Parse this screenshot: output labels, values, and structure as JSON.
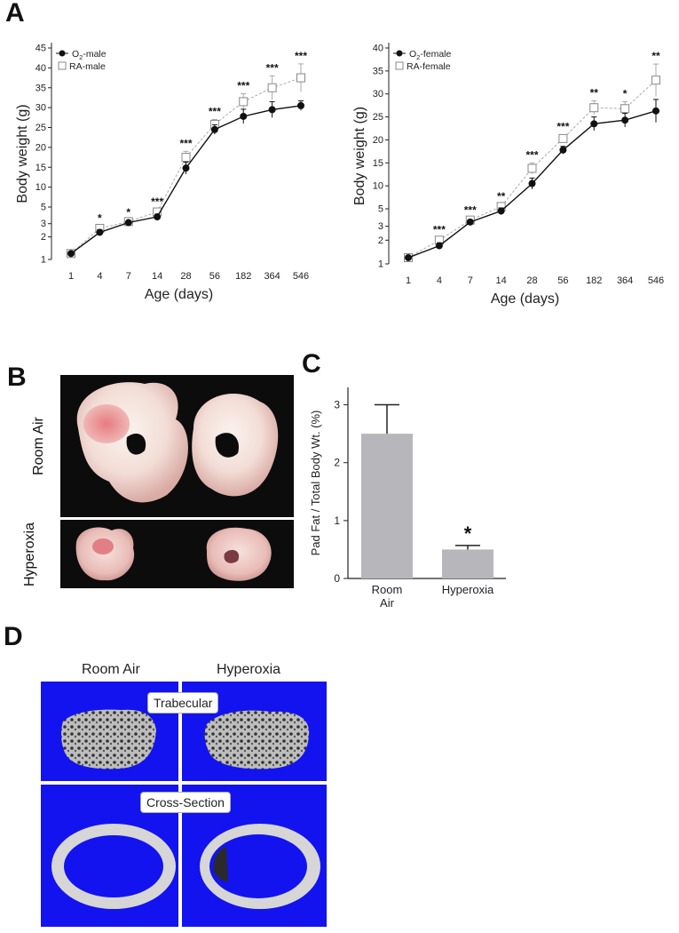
{
  "panels": {
    "a": "A",
    "b": "B",
    "c": "C",
    "d": "D"
  },
  "colors": {
    "bar": "#b6b6bb",
    "o2_series": "#111111",
    "ra_series": "#999999",
    "bone_background": "#1313f0",
    "bone": "#d6d6d6"
  },
  "photo_labels": {
    "room_air": "Room Air",
    "hyperoxia": "Hyperoxia"
  },
  "bone_images": {
    "col_room_air": "Room Air",
    "col_hyperoxia": "Hyperoxia",
    "trabecular_label": "Trabecular",
    "cross_section_label": "Cross-Section"
  },
  "chart_data": [
    {
      "type": "line",
      "panel": "A",
      "xlabel": "Age (days)",
      "ylabel": "Body weight (g)",
      "categories": [
        "1",
        "4",
        "7",
        "14",
        "28",
        "56",
        "182",
        "364",
        "546"
      ],
      "y_ticks": [
        "1",
        "2",
        "3",
        "5",
        "10",
        "15",
        "20",
        "25",
        "30",
        "35",
        "40",
        "45"
      ],
      "y_scale": "broken (log-like 1–5, linear 5–45)",
      "legend_position": "top-left",
      "series": [
        {
          "name": "O2-male",
          "name_main": "O",
          "name_sub": "2",
          "name_rest": "-male",
          "marker": "filled-circle",
          "line": "solid",
          "values": [
            1.2,
            2.3,
            3.1,
            3.7,
            14.8,
            24.5,
            27.8,
            29.5,
            30.5
          ],
          "errors": [
            0.05,
            0.2,
            0.1,
            0.3,
            1.5,
            1.2,
            1.8,
            2.0,
            1.2
          ]
        },
        {
          "name": "RA-male",
          "marker": "open-square",
          "line": "dashed",
          "values": [
            1.2,
            2.6,
            3.2,
            4.3,
            17.5,
            25.8,
            31.5,
            35.0,
            37.5
          ],
          "errors": [
            0.05,
            0.2,
            0.1,
            0.3,
            1.5,
            1.2,
            2.0,
            3.0,
            3.5
          ]
        }
      ],
      "significance": [
        "",
        "*",
        "*",
        "***",
        "***",
        "***",
        "***",
        "***",
        "***"
      ]
    },
    {
      "type": "line",
      "panel": "A",
      "xlabel": "Age (days)",
      "ylabel": "Body weight (g)",
      "categories": [
        "1",
        "4",
        "7",
        "14",
        "28",
        "56",
        "182",
        "364",
        "546"
      ],
      "y_ticks": [
        "1",
        "2",
        "3",
        "5",
        "10",
        "15",
        "20",
        "25",
        "30",
        "35",
        "40"
      ],
      "y_scale": "broken (log-like 1–5, linear 5–40)",
      "legend_position": "top-left",
      "series": [
        {
          "name": "O2-female",
          "name_main": "O",
          "name_sub": "2",
          "name_rest": "-female",
          "marker": "filled-circle",
          "line": "solid",
          "values": [
            1.2,
            1.7,
            3.4,
            4.7,
            10.5,
            17.8,
            23.5,
            24.3,
            26.3
          ],
          "errors": [
            0.05,
            0.15,
            0.2,
            0.5,
            1.2,
            0.8,
            1.5,
            1.5,
            2.5
          ]
        },
        {
          "name": "RA-female",
          "marker": "open-square",
          "line": "dashed",
          "values": [
            1.2,
            2.0,
            3.6,
            5.5,
            13.8,
            20.3,
            27.0,
            26.8,
            33.0
          ],
          "errors": [
            0.05,
            0.15,
            0.2,
            0.5,
            1.2,
            0.8,
            1.5,
            1.5,
            3.5
          ]
        }
      ],
      "significance": [
        "",
        "***",
        "***",
        "**",
        "***",
        "***",
        "**",
        "*",
        "**"
      ]
    },
    {
      "type": "bar",
      "panel": "C",
      "ylabel": "Pad Fat / Total Body Wt. (%)",
      "categories": [
        "Room\nAir",
        "Hyperoxia"
      ],
      "category_lines": [
        [
          "Room",
          "Air"
        ],
        [
          "Hyperoxia"
        ]
      ],
      "values": [
        2.5,
        0.5
      ],
      "errors": [
        0.5,
        0.07
      ],
      "significance": [
        "",
        "*"
      ],
      "ylim": [
        0,
        3.3
      ],
      "y_ticks": [
        "0",
        "1",
        "2",
        "3"
      ]
    }
  ]
}
